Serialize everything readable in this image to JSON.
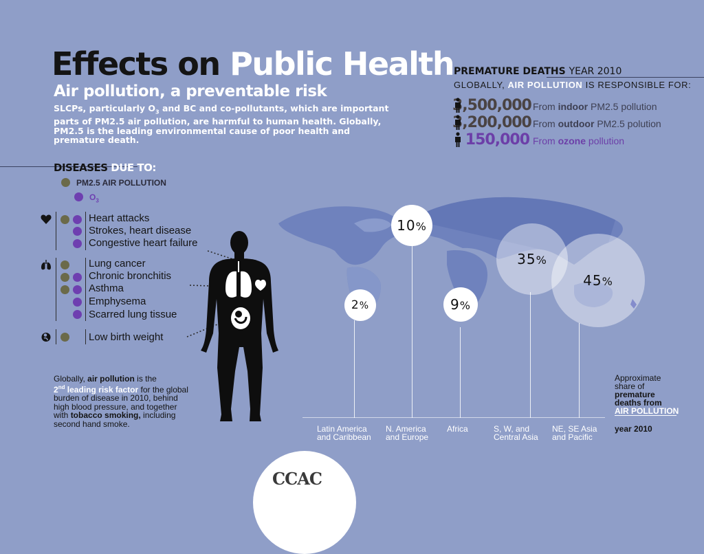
{
  "header": {
    "title_black": "Effects on",
    "title_white": "Public Health",
    "subtitle": "Air pollution, a preventable risk",
    "intro_line1": "SLCPs, particularly O",
    "intro_sub": "3",
    "intro_line1b": " and BC and co-pollutants, which are important parts of",
    "intro_rest": "PM2.5 air pollution, are harmful to human health.  Globally, PM2.5 is the leading environmental cause of poor health and premature death."
  },
  "premature_deaths": {
    "title": "PREMATURE DEATHS",
    "year": "YEAR 2010",
    "sub_pre": "GLOBALLY, ",
    "sub_highlight": "AIR POLLUTION",
    "sub_post": " IS RESPONSIBLE FOR:",
    "rows": [
      {
        "number": "3,500,000",
        "pre": "From ",
        "bold": "indoor",
        "post": " PM2.5 pollution"
      },
      {
        "number": "3,200,000",
        "pre": "From ",
        "bold": "outdoor",
        "post": " PM2.5 polution"
      },
      {
        "number": "150,000",
        "pre": "From ",
        "bold": "ozone",
        "post": " pollution"
      }
    ],
    "icon": "person-icon"
  },
  "diseases": {
    "heading_black": "DISEASES",
    "heading_white": "DUE TO:",
    "legend": [
      {
        "label": "PM2.5 AIR POLLUTION",
        "color": "#6b6a4a"
      },
      {
        "label": "O",
        "sub": "3",
        "color": "#6e3fb0"
      }
    ],
    "groups": [
      {
        "icon": "heart-icon",
        "items": [
          "Heart attacks",
          "Strokes, heart disease",
          "Congestive heart failure"
        ]
      },
      {
        "icon": "lungs-icon",
        "items": [
          "Lung cancer",
          "Chronic bronchitis",
          "Asthma",
          "Emphysema",
          "Scarred lung tissue"
        ]
      },
      {
        "icon": "fetus-icon",
        "items": [
          "Low birth weight"
        ]
      }
    ]
  },
  "chart_data": {
    "type": "bubble",
    "title": "",
    "categories": [
      "Latin America and Caribbean",
      "N. America and Europe",
      "Africa",
      "S, W, and Central Asia",
      "NE, SE Asia and Pacific"
    ],
    "values": [
      2,
      10,
      9,
      35,
      45
    ],
    "unit": "%",
    "labels": [
      "2",
      "10",
      "9",
      "35",
      "45"
    ],
    "region_lines": [
      [
        "Latin America",
        "and Caribbean"
      ],
      [
        "N. America",
        "and Europe"
      ],
      [
        "Africa"
      ],
      [
        "S, W, and",
        "Central Asia"
      ],
      [
        "NE, SE Asia",
        "and Pacific"
      ]
    ]
  },
  "share_note": {
    "line1": "Approximate",
    "line2": "share of",
    "line3": "premature",
    "line4": "deaths from",
    "line5": "AIR POLLUTION",
    "year": "year 2010"
  },
  "bottom_note": {
    "p1": "Globally, ",
    "b1": "air pollution",
    "p2": " is the",
    "rank": "2",
    "rank_sup": "nd",
    "rank_rest": " leading risk factor",
    "p3": " for the global burden of disease in 2010, behind high blood pressure, and together with ",
    "b2": "tobacco smoking,",
    "p4": " including second hand smoke."
  },
  "logo": {
    "text": "CCAC"
  },
  "colors": {
    "background": "#8f9ec8",
    "purple": "#6e3fb0",
    "olive": "#6b6a4a"
  }
}
